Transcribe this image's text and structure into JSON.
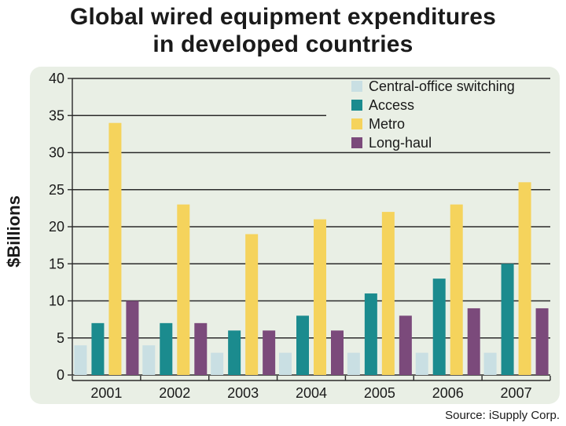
{
  "chart_data": {
    "type": "bar",
    "title_lines": [
      "Global wired equipment expenditures",
      "in developed countries"
    ],
    "ylabel": "$Billions",
    "xlabel": "",
    "categories": [
      "2001",
      "2002",
      "2003",
      "2004",
      "2005",
      "2006",
      "2007"
    ],
    "ylim": [
      0,
      40
    ],
    "yticks": [
      "0",
      "5",
      "10",
      "15",
      "20",
      "25",
      "30",
      "35",
      "40"
    ],
    "grid": true,
    "legend_position": "top-right",
    "series": [
      {
        "name": "Central-office switching",
        "color": "#c9dfe3",
        "values": [
          4,
          4,
          3,
          3,
          3,
          3,
          3
        ]
      },
      {
        "name": "Access",
        "color": "#1b8b8e",
        "values": [
          7,
          7,
          6,
          8,
          11,
          13,
          15
        ]
      },
      {
        "name": "Metro",
        "color": "#f5d35c",
        "values": [
          34,
          23,
          19,
          21,
          22,
          23,
          26
        ]
      },
      {
        "name": "Long-haul",
        "color": "#7b4a7b",
        "values": [
          10,
          7,
          6,
          6,
          8,
          9,
          9
        ]
      }
    ],
    "source": "Source: iSupply Corp."
  },
  "colors": {
    "panel_background": "#e9efe5",
    "gridline": "#2a2a2a",
    "text": "#1a1a1a"
  }
}
